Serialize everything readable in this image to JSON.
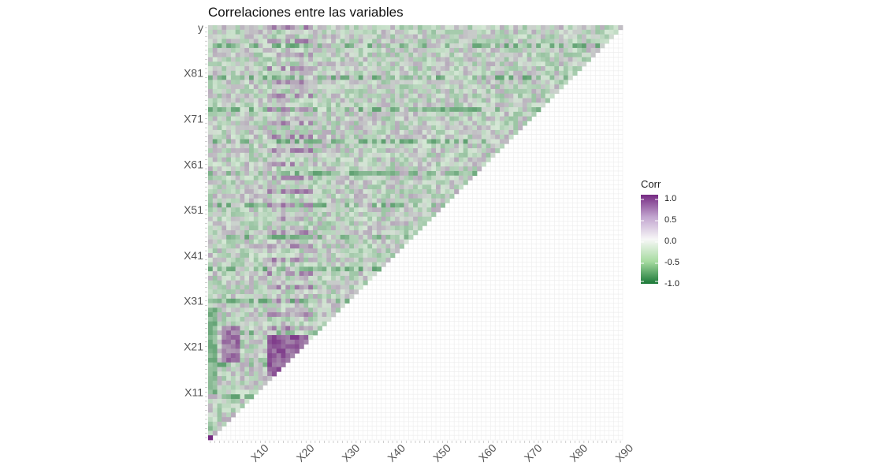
{
  "chart_data": {
    "type": "heatmap",
    "title": "Correlaciones entre las variables",
    "xlabel": "",
    "ylabel": "",
    "matrix_shape": "lower-triangle correlation matrix",
    "y_tick_labels": [
      "y",
      "X81",
      "X71",
      "X61",
      "X51",
      "X41",
      "X31",
      "X21",
      "X11"
    ],
    "x_tick_labels": [
      "X10",
      "X20",
      "X30",
      "X40",
      "X50",
      "X60",
      "X70",
      "X80",
      "X90"
    ],
    "color_scale": {
      "title": "Corr",
      "limits": [
        -1.0,
        1.0
      ],
      "low_color": "#1b7837",
      "mid_color": "#f7f7f7",
      "high_color": "#762a83"
    },
    "legend_ticks": [
      "1.0",
      "0.5",
      "0.0",
      "-0.5",
      "-1.0"
    ],
    "legend_position": "right",
    "grid": true,
    "approx_values_by_region": [
      {
        "region": "most cells",
        "corr": 0.0
      },
      {
        "region": "cluster near X15-X22 / X15-X22",
        "corr": 0.75
      },
      {
        "region": "bands at X4-X6 columns",
        "corr": 0.35
      },
      {
        "region": "left column bands (rows X11-X21)",
        "corr": -0.3
      }
    ]
  }
}
